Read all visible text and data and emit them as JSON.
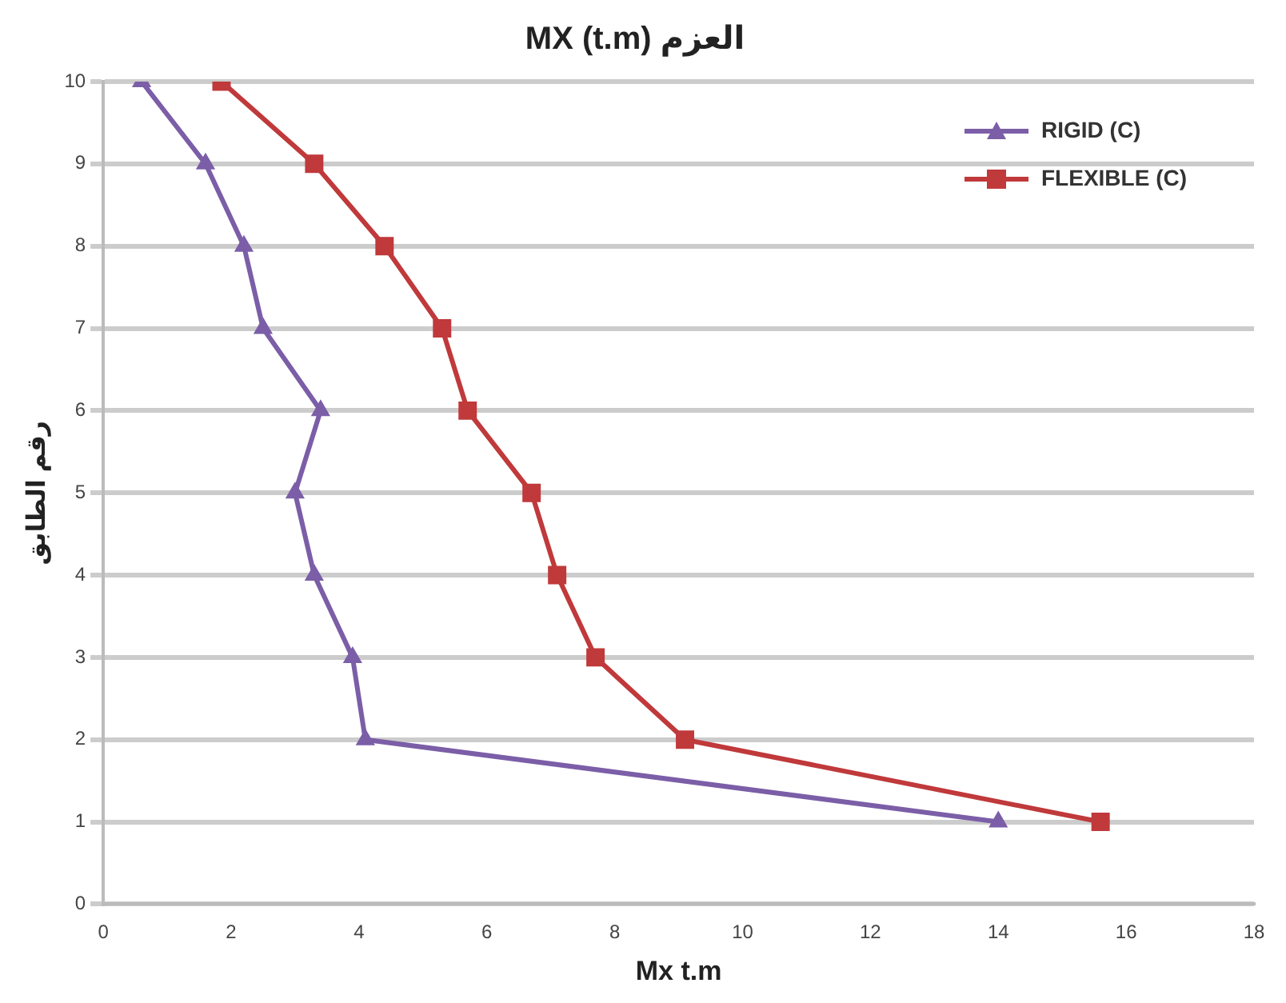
{
  "chart_data": {
    "type": "line",
    "title": "MX (t.m) العزم",
    "xlabel": "Mx t.m",
    "ylabel": "رقم الطابق",
    "xlim": [
      0,
      18
    ],
    "xticks": [
      0,
      2,
      4,
      6,
      8,
      10,
      12,
      14,
      16,
      18
    ],
    "ylim": [
      0,
      10
    ],
    "yticks": [
      0,
      1,
      2,
      3,
      4,
      5,
      6,
      7,
      8,
      9,
      10
    ],
    "grid": "y",
    "legend": "top right",
    "series": [
      {
        "name": "RIGID (C)",
        "color": "#7b5ea7",
        "marker": "triangle",
        "x": [
          14.0,
          4.1,
          3.9,
          3.3,
          3.0,
          3.4,
          2.5,
          2.2,
          1.6,
          0.6
        ],
        "values": [
          1,
          2,
          3,
          4,
          5,
          6,
          7,
          8,
          9,
          10
        ]
      },
      {
        "name": "FLEXIBLE (C)",
        "color": "#c0393b",
        "marker": "square",
        "x": [
          15.6,
          9.1,
          7.7,
          7.1,
          6.7,
          5.7,
          5.3,
          4.4,
          3.3,
          1.85
        ],
        "values": [
          1,
          2,
          3,
          4,
          5,
          6,
          7,
          8,
          9,
          10
        ]
      }
    ]
  }
}
